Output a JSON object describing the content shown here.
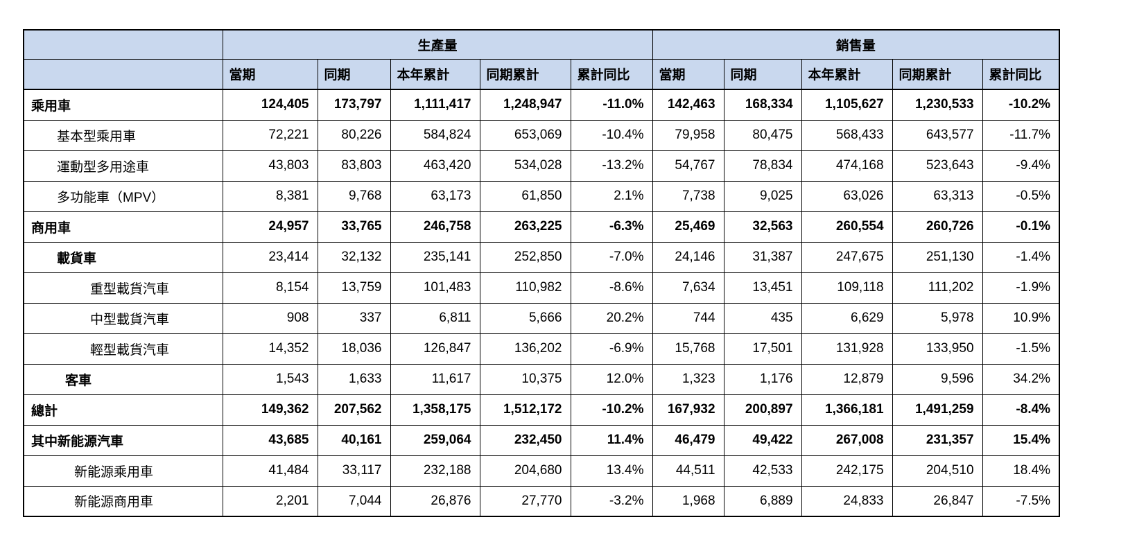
{
  "table": {
    "group_headers": {
      "production": "生產量",
      "sales": "銷售量"
    },
    "column_headers": [
      "當期",
      "同期",
      "本年累計",
      "同期累計",
      "累計同比"
    ],
    "header_bg_color": "#C9D8EE",
    "border_color": "#000000",
    "rows": [
      {
        "label": "乘用車",
        "indent": 0,
        "bold": true,
        "label_bold": true,
        "production": [
          "124,405",
          "173,797",
          "1,111,417",
          "1,248,947",
          "-11.0%"
        ],
        "sales": [
          "142,463",
          "168,334",
          "1,105,627",
          "1,230,533",
          "-10.2%"
        ]
      },
      {
        "label": "基本型乘用車",
        "indent": 1,
        "bold": false,
        "label_bold": false,
        "production": [
          "72,221",
          "80,226",
          "584,824",
          "653,069",
          "-10.4%"
        ],
        "sales": [
          "79,958",
          "80,475",
          "568,433",
          "643,577",
          "-11.7%"
        ]
      },
      {
        "label": "運動型多用途車",
        "indent": 1,
        "bold": false,
        "label_bold": false,
        "production": [
          "43,803",
          "83,803",
          "463,420",
          "534,028",
          "-13.2%"
        ],
        "sales": [
          "54,767",
          "78,834",
          "474,168",
          "523,643",
          "-9.4%"
        ]
      },
      {
        "label": "多功能車（MPV）",
        "indent": 1,
        "bold": false,
        "label_bold": false,
        "production": [
          "8,381",
          "9,768",
          "63,173",
          "61,850",
          "2.1%"
        ],
        "sales": [
          "7,738",
          "9,025",
          "63,026",
          "63,313",
          "-0.5%"
        ]
      },
      {
        "label": "商用車",
        "indent": 0,
        "bold": true,
        "label_bold": true,
        "production": [
          "24,957",
          "33,765",
          "246,758",
          "263,225",
          "-6.3%"
        ],
        "sales": [
          "25,469",
          "32,563",
          "260,554",
          "260,726",
          "-0.1%"
        ]
      },
      {
        "label": "載貨車",
        "indent": 1,
        "bold": false,
        "label_bold": true,
        "production": [
          "23,414",
          "32,132",
          "235,141",
          "252,850",
          "-7.0%"
        ],
        "sales": [
          "24,146",
          "31,387",
          "247,675",
          "251,130",
          "-1.4%"
        ]
      },
      {
        "label": "重型載貨汽車",
        "indent": 4,
        "bold": false,
        "label_bold": false,
        "production": [
          "8,154",
          "13,759",
          "101,483",
          "110,982",
          "-8.6%"
        ],
        "sales": [
          "7,634",
          "13,451",
          "109,118",
          "111,202",
          "-1.9%"
        ]
      },
      {
        "label": "中型載貨汽車",
        "indent": 4,
        "bold": false,
        "label_bold": false,
        "production": [
          "908",
          "337",
          "6,811",
          "5,666",
          "20.2%"
        ],
        "sales": [
          "744",
          "435",
          "6,629",
          "5,978",
          "10.9%"
        ]
      },
      {
        "label": "輕型載貨汽車",
        "indent": 4,
        "bold": false,
        "label_bold": false,
        "production": [
          "14,352",
          "18,036",
          "126,847",
          "136,202",
          "-6.9%"
        ],
        "sales": [
          "15,768",
          "17,501",
          "131,928",
          "133,950",
          "-1.5%"
        ]
      },
      {
        "label": "客車",
        "indent": 2,
        "bold": false,
        "label_bold": true,
        "production": [
          "1,543",
          "1,633",
          "11,617",
          "10,375",
          "12.0%"
        ],
        "sales": [
          "1,323",
          "1,176",
          "12,879",
          "9,596",
          "34.2%"
        ]
      },
      {
        "label": "總計",
        "indent": 0,
        "bold": true,
        "label_bold": true,
        "production": [
          "149,362",
          "207,562",
          "1,358,175",
          "1,512,172",
          "-10.2%"
        ],
        "sales": [
          "167,932",
          "200,897",
          "1,366,181",
          "1,491,259",
          "-8.4%"
        ]
      },
      {
        "label": "其中新能源汽車",
        "indent": 0,
        "bold": true,
        "label_bold": true,
        "production": [
          "43,685",
          "40,161",
          "259,064",
          "232,450",
          "11.4%"
        ],
        "sales": [
          "46,479",
          "49,422",
          "267,008",
          "231,357",
          "15.4%"
        ]
      },
      {
        "label": "新能源乘用車",
        "indent": 3,
        "bold": false,
        "label_bold": false,
        "production": [
          "41,484",
          "33,117",
          "232,188",
          "204,680",
          "13.4%"
        ],
        "sales": [
          "44,511",
          "42,533",
          "242,175",
          "204,510",
          "18.4%"
        ]
      },
      {
        "label": "新能源商用車",
        "indent": 3,
        "bold": false,
        "label_bold": false,
        "production": [
          "2,201",
          "7,044",
          "26,876",
          "27,770",
          "-3.2%"
        ],
        "sales": [
          "1,968",
          "6,889",
          "24,833",
          "26,847",
          "-7.5%"
        ]
      }
    ]
  }
}
